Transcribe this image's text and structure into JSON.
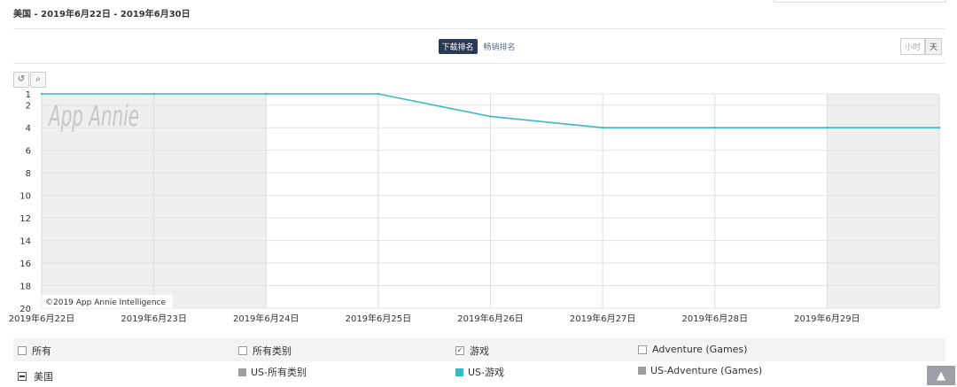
{
  "header": {
    "title": "美国 - 2019年6月22日 - 2019年6月30日"
  },
  "tabs": [
    {
      "label": "下载排名",
      "active": true
    },
    {
      "label": "畅销排名",
      "active": false
    }
  ],
  "granularity": [
    {
      "label": "小时",
      "active": false
    },
    {
      "label": "天",
      "active": true
    }
  ],
  "toolbar": {
    "reset_icon": "reset-icon",
    "zoom_icon": "zoom-icon"
  },
  "watermark": "App Annie",
  "copyright": "©2019 App Annie Intelligence",
  "chart_data": {
    "type": "line",
    "x": [
      "2019年6月22日",
      "2019年6月23日",
      "2019年6月24日",
      "2019年6月25日",
      "2019年6月26日",
      "2019年6月27日",
      "2019年6月28日",
      "2019年6月29日",
      "2019年6月30日"
    ],
    "xtick_labels": [
      "2019年6月22日",
      "2019年6月23日",
      "2019年6月24日",
      "2019年6月25日",
      "2019年6月26日",
      "2019年6月27日",
      "2019年6月28日",
      "2019年6月29日"
    ],
    "yticks": [
      1,
      2,
      4,
      6,
      8,
      10,
      12,
      14,
      16,
      18,
      20
    ],
    "ylim": [
      1,
      20
    ],
    "y_reversed": true,
    "grid": true,
    "weekend_shading": [
      "2019年6月22日",
      "2019年6月23日",
      "2019年6月29日",
      "2019年6月30日"
    ],
    "series": [
      {
        "name": "US-游戏",
        "color": "#39b9c6",
        "values": [
          1,
          1,
          1,
          1,
          3,
          4,
          4,
          4,
          4
        ]
      }
    ]
  },
  "legend": {
    "rows": [
      {
        "label": "所有",
        "checked": false
      },
      {
        "label": "所有类别",
        "checked": false
      },
      {
        "label": "游戏",
        "checked": true
      },
      {
        "label": "Adventure (Games)",
        "checked": false
      }
    ],
    "country": {
      "label": "美国"
    },
    "series": [
      {
        "label": "US-所有类别",
        "color": "#9e9e9e"
      },
      {
        "label": "US-游戏",
        "color": "#39b9c6"
      },
      {
        "label": "US-Adventure (Games)",
        "color": "#9e9e9e"
      }
    ]
  },
  "scroll_top": "scroll-top-icon"
}
